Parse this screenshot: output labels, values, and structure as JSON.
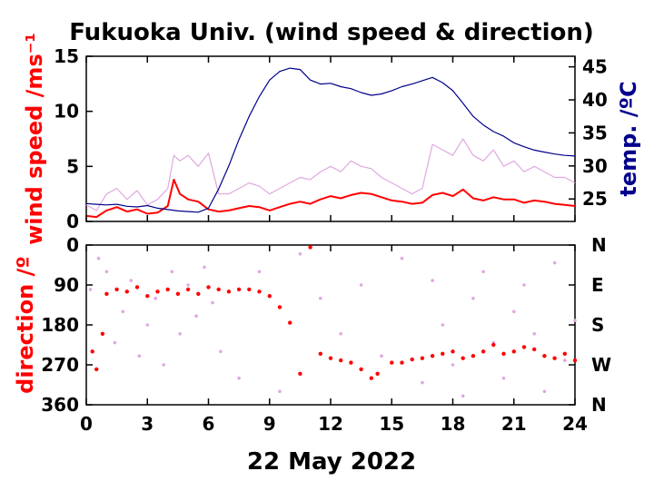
{
  "chart_data": [
    {
      "type": "line",
      "title": "Fukuoka Univ. (wind speed & direction)",
      "ylabel": "wind speed /ms⁻¹",
      "ylabel_right": "temp. /ºC",
      "xlim": [
        0,
        24
      ],
      "ylim": [
        0,
        15
      ],
      "ylim_right": [
        21.6,
        46.6
      ],
      "yticks": [
        0,
        5,
        10,
        15
      ],
      "yticks_right": [
        25,
        30,
        35,
        40,
        45
      ],
      "series": [
        {
          "color": "#ff0000",
          "axis": "left",
          "x": [
            0,
            0.5,
            1,
            1.5,
            2,
            2.5,
            3,
            3.5,
            4,
            4.3,
            4.6,
            5,
            5.5,
            6,
            6.5,
            7,
            7.5,
            8,
            8.5,
            9,
            9.5,
            10,
            10.5,
            11,
            11.5,
            12,
            12.5,
            13,
            13.5,
            14,
            14.5,
            15,
            15.5,
            16,
            16.5,
            17,
            17.5,
            18,
            18.5,
            19,
            19.5,
            20,
            20.5,
            21,
            21.5,
            22,
            22.5,
            23,
            23.5,
            24
          ],
          "values": [
            0.5,
            0.4,
            1.0,
            1.3,
            0.9,
            1.1,
            0.7,
            0.8,
            1.4,
            3.8,
            2.5,
            2.0,
            1.8,
            1.1,
            0.9,
            1.0,
            1.2,
            1.4,
            1.3,
            1.0,
            1.3,
            1.6,
            1.8,
            1.6,
            2.0,
            2.3,
            2.1,
            2.4,
            2.6,
            2.5,
            2.2,
            1.9,
            1.8,
            1.6,
            1.7,
            2.4,
            2.6,
            2.3,
            2.9,
            2.1,
            1.9,
            2.2,
            2.0,
            2.0,
            1.7,
            1.9,
            1.8,
            1.6,
            1.5,
            1.4
          ]
        },
        {
          "color": "#e0a8e0",
          "axis": "left",
          "x": [
            0,
            0.5,
            1,
            1.5,
            2,
            2.5,
            3,
            3.5,
            4,
            4.3,
            4.6,
            5,
            5.5,
            6,
            6.5,
            7,
            7.5,
            8,
            8.5,
            9,
            9.5,
            10,
            10.5,
            11,
            11.5,
            12,
            12.5,
            13,
            13.5,
            14,
            14.5,
            15,
            15.5,
            16,
            16.5,
            17,
            17.5,
            18,
            18.5,
            19,
            19.5,
            20,
            20.5,
            21,
            21.5,
            22,
            22.5,
            23,
            23.5,
            24
          ],
          "values": [
            1.5,
            1.0,
            2.5,
            3.0,
            2.0,
            2.8,
            1.5,
            2.0,
            3.0,
            6.0,
            5.5,
            6.0,
            5.0,
            6.2,
            2.5,
            2.5,
            3.0,
            3.5,
            3.2,
            2.5,
            3.0,
            3.5,
            4.0,
            3.8,
            4.5,
            5.0,
            4.5,
            5.5,
            5.0,
            4.8,
            4.0,
            3.5,
            3.0,
            2.5,
            3.0,
            7.0,
            6.5,
            6.0,
            7.5,
            6.0,
            5.5,
            6.5,
            5.0,
            5.5,
            4.5,
            5.0,
            4.5,
            4.0,
            4.0,
            3.5
          ]
        },
        {
          "color": "#00008b",
          "axis": "right",
          "x": [
            0,
            0.5,
            1,
            1.5,
            2,
            2.5,
            3,
            3.5,
            4,
            4.5,
            5,
            5.5,
            6,
            6.5,
            7,
            7.5,
            8,
            8.5,
            9,
            9.5,
            10,
            10.5,
            11,
            11.5,
            12,
            12.5,
            13,
            13.5,
            14,
            14.5,
            15,
            15.5,
            16,
            16.5,
            17,
            17.5,
            18,
            18.5,
            19,
            19.5,
            20,
            20.5,
            21,
            21.5,
            22,
            22.5,
            23,
            23.5,
            24
          ],
          "values": [
            24.3,
            24.2,
            24.1,
            24.2,
            23.9,
            23.8,
            24.0,
            23.6,
            23.4,
            23.2,
            23.1,
            23.0,
            23.6,
            26.5,
            30.0,
            34.0,
            37.5,
            40.5,
            43.0,
            44.3,
            44.8,
            44.6,
            43.0,
            42.4,
            42.5,
            42.0,
            41.7,
            41.1,
            40.7,
            40.9,
            41.4,
            42.0,
            42.4,
            42.9,
            43.4,
            42.6,
            41.4,
            39.5,
            37.5,
            36.2,
            35.2,
            34.5,
            33.5,
            32.9,
            32.4,
            32.1,
            31.8,
            31.6,
            31.5
          ]
        }
      ]
    },
    {
      "type": "scatter",
      "xlabel": "22 May 2022",
      "ylabel": "direction /º",
      "xlim": [
        0,
        24
      ],
      "ylim": [
        360,
        0
      ],
      "xticks": [
        0,
        3,
        6,
        9,
        12,
        15,
        18,
        21,
        24
      ],
      "yticks": [
        0,
        90,
        180,
        270,
        360
      ],
      "yticks_right": [
        "N",
        "E",
        "S",
        "W",
        "N"
      ],
      "series": [
        {
          "color": "#ff0000",
          "x": [
            0.3,
            0.5,
            0.8,
            1,
            1.5,
            2,
            2.5,
            3,
            3.5,
            4,
            4.5,
            5,
            5.5,
            6,
            6.5,
            7,
            7.5,
            8,
            8.5,
            9,
            9.5,
            10,
            10.5,
            11,
            11.5,
            12,
            12.5,
            13,
            13.5,
            14,
            14.3,
            15,
            15.5,
            16,
            16.5,
            17,
            17.5,
            18,
            18.5,
            19,
            19.5,
            20,
            20.5,
            21,
            21.5,
            22,
            22.5,
            23,
            23.5,
            24
          ],
          "values": [
            240,
            280,
            200,
            110,
            100,
            105,
            95,
            115,
            105,
            100,
            110,
            100,
            110,
            95,
            100,
            105,
            100,
            100,
            105,
            115,
            140,
            175,
            290,
            5,
            245,
            255,
            260,
            265,
            280,
            300,
            290,
            265,
            265,
            258,
            255,
            250,
            245,
            240,
            255,
            250,
            240,
            225,
            245,
            240,
            230,
            235,
            250,
            255,
            245,
            260
          ]
        },
        {
          "color": "#e0a8e0",
          "x": [
            0.2,
            0.6,
            1,
            1.4,
            1.8,
            2.2,
            2.6,
            3,
            3.4,
            3.8,
            4.2,
            4.6,
            5,
            5.4,
            5.8,
            6.2,
            6.6,
            7.5,
            8.5,
            9.5,
            10.5,
            11.5,
            12.5,
            13.5,
            14.5,
            15.5,
            16.5,
            17,
            17.5,
            18,
            18.5,
            19,
            19.5,
            20,
            20.5,
            21,
            21.5,
            22,
            22.5,
            23,
            23.5,
            24
          ],
          "values": [
            100,
            30,
            60,
            220,
            150,
            80,
            250,
            180,
            120,
            270,
            60,
            200,
            90,
            160,
            50,
            130,
            240,
            300,
            60,
            330,
            20,
            120,
            200,
            90,
            250,
            30,
            310,
            80,
            180,
            270,
            340,
            120,
            60,
            220,
            300,
            150,
            90,
            200,
            330,
            40,
            260,
            170
          ]
        }
      ]
    }
  ]
}
